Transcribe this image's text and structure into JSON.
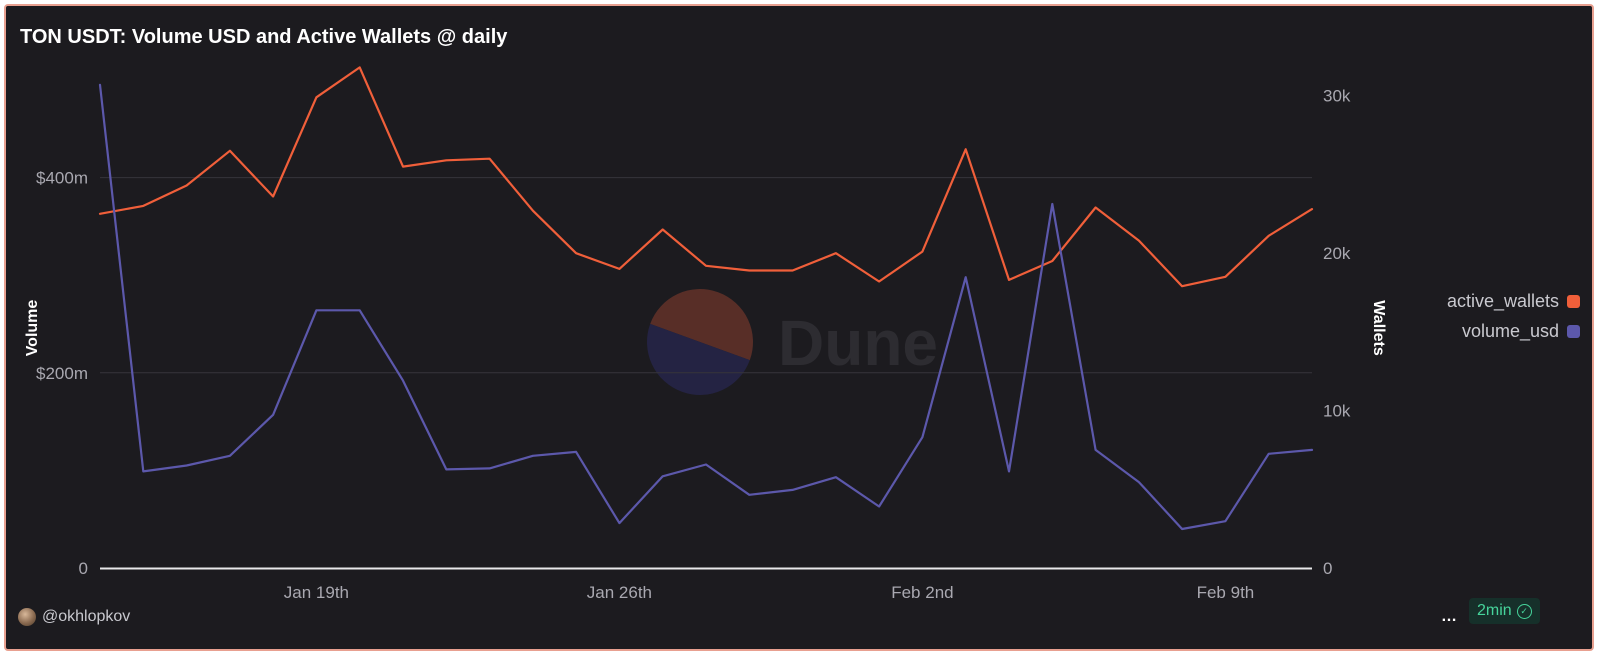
{
  "title": "TON USDT: Volume USD and Active Wallets @ daily",
  "colors": {
    "background": "#1c1b1f",
    "border": "#e8a090",
    "active_wallets": "#f05f3a",
    "volume_usd": "#5c58ab",
    "grid": "#36353b",
    "axis_text": "#a9a8b0"
  },
  "watermark": "Dune",
  "footer": {
    "user": "@okhlopkov",
    "more_icon": "…",
    "refresh_badge": "2min"
  },
  "legend": [
    {
      "label": "active_wallets",
      "color": "#f05f3a"
    },
    {
      "label": "volume_usd",
      "color": "#5c58ab"
    }
  ],
  "chart_data": {
    "type": "line",
    "title": "TON USDT: Volume USD and Active Wallets @ daily",
    "x": [
      "2024-01-14",
      "2024-01-15",
      "2024-01-16",
      "2024-01-17",
      "2024-01-18",
      "2024-01-19",
      "2024-01-20",
      "2024-01-21",
      "2024-01-22",
      "2024-01-23",
      "2024-01-24",
      "2024-01-25",
      "2024-01-26",
      "2024-01-27",
      "2024-01-28",
      "2024-01-29",
      "2024-01-30",
      "2024-01-31",
      "2024-02-01",
      "2024-02-02",
      "2024-02-03",
      "2024-02-04",
      "2024-02-05",
      "2024-02-06",
      "2024-02-07",
      "2024-02-08",
      "2024-02-09",
      "2024-02-10",
      "2024-02-11"
    ],
    "x_ticks": [
      "Jan 19th",
      "Jan 26th",
      "Feb 2nd",
      "Feb 9th"
    ],
    "y_left": {
      "label": "Volume",
      "ticks": [
        "0",
        "$200m",
        "$400m"
      ],
      "range": [
        0,
        500000000
      ]
    },
    "y_right": {
      "label": "Wallets",
      "ticks": [
        "0",
        "10k",
        "20k",
        "30k"
      ],
      "range": [
        0,
        31000
      ]
    },
    "series": [
      {
        "name": "active_wallets",
        "axis": "right",
        "values": [
          22500,
          23000,
          24300,
          26500,
          23600,
          29900,
          31800,
          25500,
          25900,
          26000,
          22700,
          20000,
          19000,
          21500,
          19200,
          18900,
          18900,
          20000,
          18200,
          20100,
          26600,
          18300,
          19500,
          22900,
          20800,
          17900,
          18500,
          21100,
          22800
        ]
      },
      {
        "name": "volume_usd",
        "axis": "left",
        "values": [
          495000000,
          99000000,
          105000000,
          115000000,
          157000000,
          264000000,
          264000000,
          192000000,
          101000000,
          102000000,
          115000000,
          119000000,
          46000000,
          94000000,
          106000000,
          75000000,
          80000000,
          93000000,
          63000000,
          134000000,
          298000000,
          99000000,
          373000000,
          121000000,
          88000000,
          40000000,
          48000000,
          117000000,
          121000000
        ]
      }
    ],
    "grid": true,
    "legend_position": "right"
  }
}
